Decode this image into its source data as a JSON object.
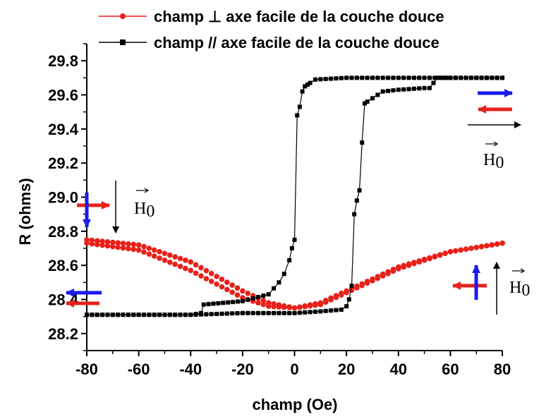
{
  "chart_data": {
    "type": "scatter",
    "xlabel": "champ (Oe)",
    "ylabel": "R (ohms)",
    "xlim": [
      -80,
      80
    ],
    "ylim": [
      28.1,
      29.9
    ],
    "x_ticks": [
      -80,
      -60,
      -40,
      -20,
      0,
      20,
      40,
      60,
      80
    ],
    "x_tick_labels": [
      "-80",
      "-60",
      "-40",
      "-20",
      "0",
      "20",
      "40",
      "60",
      "80"
    ],
    "y_ticks": [
      28.2,
      28.4,
      28.6,
      28.8,
      29.0,
      29.2,
      29.4,
      29.6,
      29.8
    ],
    "y_tick_labels": [
      "28.2",
      "28.4",
      "28.6",
      "28.8",
      "29.0",
      "29.2",
      "29.4",
      "29.6",
      "29.8"
    ],
    "grid": false,
    "legend_position": "top",
    "series": [
      {
        "name": "champ ⊥ axe facile de la couche douce",
        "color": "#e8201a",
        "marker": "circle",
        "branches": [
          {
            "x": [
              -80,
              -60,
              -40,
              -20,
              -10,
              0,
              10,
              20,
              40,
              60,
              80
            ],
            "y": [
              28.75,
              28.72,
              28.62,
              28.45,
              28.38,
              28.35,
              28.37,
              28.44,
              28.58,
              28.68,
              28.73
            ]
          },
          {
            "x": [
              -80,
              -60,
              -40,
              -20,
              -10,
              0,
              10,
              20,
              40,
              60,
              80
            ],
            "y": [
              28.73,
              28.69,
              28.57,
              28.41,
              28.36,
              28.35,
              28.38,
              28.45,
              28.59,
              28.68,
              28.73
            ]
          }
        ]
      },
      {
        "name": "champ // axe facile de la couche douce",
        "color": "#000000",
        "marker": "square",
        "branches": [
          {
            "x": [
              -80,
              -60,
              -40,
              -36,
              -35,
              -20,
              -10,
              -6,
              -4,
              -2,
              -1,
              0,
              1,
              2,
              3,
              4,
              5,
              6,
              8,
              20,
              40,
              60,
              80
            ],
            "y": [
              28.31,
              28.31,
              28.31,
              28.32,
              28.37,
              28.39,
              28.43,
              28.5,
              28.55,
              28.63,
              28.7,
              28.75,
              29.48,
              29.53,
              29.62,
              29.65,
              29.66,
              29.67,
              29.69,
              29.7,
              29.7,
              29.7,
              29.7
            ]
          },
          {
            "x": [
              -80,
              -60,
              -40,
              -20,
              0,
              10,
              18,
              20,
              21,
              22,
              23,
              24,
              25,
              26,
              27,
              28,
              30,
              32,
              34,
              40,
              50,
              52,
              55,
              60,
              80
            ],
            "y": [
              28.31,
              28.31,
              28.31,
              28.32,
              28.32,
              28.33,
              28.34,
              28.36,
              28.4,
              28.48,
              28.9,
              28.98,
              29.04,
              29.32,
              29.55,
              29.56,
              29.58,
              29.6,
              29.62,
              29.63,
              29.64,
              29.64,
              29.7,
              29.7,
              29.7
            ]
          }
        ]
      }
    ],
    "annotations": [
      {
        "label": "H0",
        "x": -72,
        "y": 29.0,
        "direction": "down"
      },
      {
        "label": "H0",
        "x": 72,
        "y": 29.47,
        "direction": "right"
      },
      {
        "label": "H0",
        "x": 76,
        "y": 28.42,
        "direction": "up"
      }
    ]
  }
}
